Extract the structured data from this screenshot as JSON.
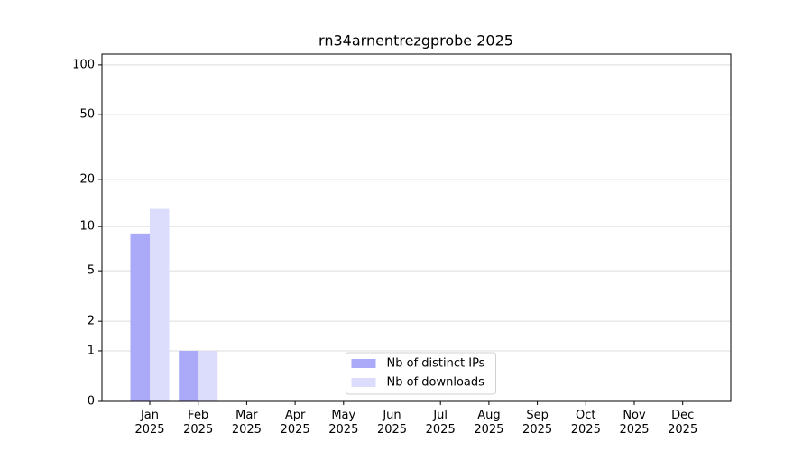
{
  "chart_data": {
    "type": "bar",
    "title": "rn34arnentrezgprobe 2025",
    "categories": [
      "Jan\n2025",
      "Feb\n2025",
      "Mar\n2025",
      "Apr\n2025",
      "May\n2025",
      "Jun\n2025",
      "Jul\n2025",
      "Aug\n2025",
      "Sep\n2025",
      "Oct\n2025",
      "Nov\n2025",
      "Dec\n2025"
    ],
    "series": [
      {
        "name": "Nb of distinct IPs",
        "color": "#aaaaf8",
        "values": [
          9,
          1,
          null,
          null,
          null,
          null,
          null,
          null,
          null,
          null,
          null,
          null
        ]
      },
      {
        "name": "Nb of downloads",
        "color": "#dcdcfc",
        "values": [
          13,
          1,
          null,
          null,
          null,
          null,
          null,
          null,
          null,
          null,
          null,
          null
        ]
      }
    ],
    "yscale": "log1p",
    "ylim": [
      0,
      116
    ],
    "yticks": [
      0,
      1,
      2,
      5,
      10,
      20,
      50,
      100
    ],
    "grid": true,
    "legend": "lower center"
  }
}
